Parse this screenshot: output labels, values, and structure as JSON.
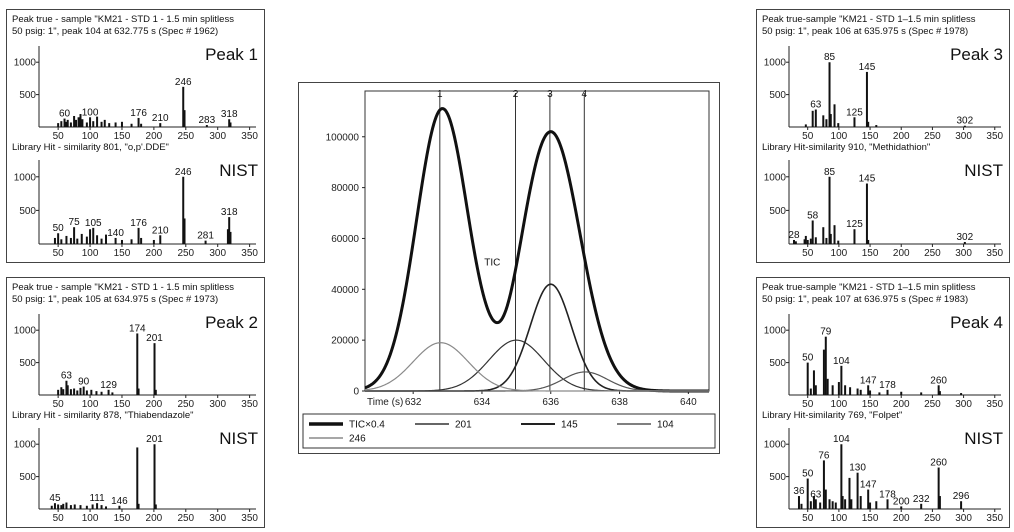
{
  "tic_chart": {
    "type": "line",
    "xlabel": "Time (s)",
    "xlim": [
      630.6,
      640.6
    ],
    "ylim": [
      0,
      118000
    ],
    "x_ticks": [
      632,
      634,
      636,
      638,
      640
    ],
    "y_ticks": [
      0,
      20000,
      40000,
      60000,
      80000,
      100000
    ],
    "peak_markers": [
      {
        "label": "1",
        "x": 632.775
      },
      {
        "label": "2",
        "x": 634.975
      },
      {
        "label": "3",
        "x": 635.975
      },
      {
        "label": "4",
        "x": 636.975
      }
    ],
    "tic_annotation": "TIC",
    "series": [
      {
        "name": "TIC×0.4",
        "peaks": [
          {
            "mu": 632.85,
            "amp": 111000,
            "sigma": 0.75
          },
          {
            "mu": 636.0,
            "amp": 102000,
            "sigma": 0.85
          }
        ],
        "dip": {
          "mu": 634.7,
          "amp": 5000,
          "sigma": 0.35
        }
      },
      {
        "name": "201",
        "peaks": [
          {
            "mu": 635.0,
            "amp": 20000,
            "sigma": 0.8
          }
        ]
      },
      {
        "name": "145",
        "peaks": [
          {
            "mu": 636.0,
            "amp": 42000,
            "sigma": 0.6
          }
        ]
      },
      {
        "name": "104",
        "peaks": [
          {
            "mu": 637.0,
            "amp": 7500,
            "sigma": 0.65
          }
        ]
      },
      {
        "name": "246",
        "peaks": [
          {
            "mu": 632.8,
            "amp": 19000,
            "sigma": 0.8
          }
        ]
      }
    ],
    "series_colors": [
      "#111111",
      "#333333",
      "#222222",
      "#555555",
      "#8a8a8a"
    ]
  },
  "spectra": [
    {
      "id": "peak1",
      "header_line1": "Peak true - sample \"KM21 - STD 1 - 1.5 min splitless",
      "header_line2": "50 psig: 1\", peak 104 at 632.775 s (Spec # 1962)",
      "top_tag": "Peak 1",
      "library_line": "Library Hit - similarity 801, \"o,p'.DDE\"",
      "bottom_tag": "NIST",
      "sample": {
        "type": "bar",
        "ylim": [
          0,
          1250
        ],
        "bars": [
          [
            50,
            60
          ],
          [
            55,
            90
          ],
          [
            60,
            130
          ],
          [
            63,
            80
          ],
          [
            65,
            110
          ],
          [
            70,
            70
          ],
          [
            75,
            170
          ],
          [
            78,
            110
          ],
          [
            82,
            150
          ],
          [
            85,
            200
          ],
          [
            88,
            120
          ],
          [
            95,
            70
          ],
          [
            100,
            150
          ],
          [
            105,
            90
          ],
          [
            111,
            160
          ],
          [
            118,
            80
          ],
          [
            123,
            110
          ],
          [
            130,
            60
          ],
          [
            140,
            70
          ],
          [
            150,
            80
          ],
          [
            165,
            50
          ],
          [
            176,
            140
          ],
          [
            180,
            50
          ],
          [
            210,
            60
          ],
          [
            246,
            620
          ],
          [
            248,
            260
          ],
          [
            283,
            30
          ],
          [
            318,
            120
          ],
          [
            320,
            70
          ]
        ],
        "labels": [
          {
            "text": "60",
            "x": 60,
            "y": 130
          },
          {
            "text": "100",
            "x": 100,
            "y": 150
          },
          {
            "text": "176",
            "x": 176,
            "y": 140
          },
          {
            "text": "210",
            "x": 210,
            "y": 60
          },
          {
            "text": "246",
            "x": 246,
            "y": 620
          },
          {
            "text": "283",
            "x": 283,
            "y": 30
          },
          {
            "text": "318",
            "x": 318,
            "y": 120
          }
        ]
      },
      "library": {
        "type": "bar",
        "ylim": [
          0,
          1250
        ],
        "bars": [
          [
            45,
            90
          ],
          [
            50,
            160
          ],
          [
            55,
            70
          ],
          [
            63,
            120
          ],
          [
            70,
            90
          ],
          [
            75,
            250
          ],
          [
            80,
            80
          ],
          [
            87,
            150
          ],
          [
            95,
            110
          ],
          [
            100,
            220
          ],
          [
            105,
            240
          ],
          [
            111,
            130
          ],
          [
            118,
            80
          ],
          [
            125,
            140
          ],
          [
            140,
            90
          ],
          [
            150,
            60
          ],
          [
            165,
            70
          ],
          [
            176,
            240
          ],
          [
            180,
            90
          ],
          [
            200,
            60
          ],
          [
            210,
            130
          ],
          [
            246,
            1000
          ],
          [
            248,
            380
          ],
          [
            281,
            50
          ],
          [
            316,
            220
          ],
          [
            318,
            400
          ],
          [
            320,
            180
          ]
        ],
        "labels": [
          {
            "text": "50",
            "x": 50,
            "y": 160
          },
          {
            "text": "75",
            "x": 75,
            "y": 250
          },
          {
            "text": "105",
            "x": 105,
            "y": 240
          },
          {
            "text": "140",
            "x": 140,
            "y": 90
          },
          {
            "text": "176",
            "x": 176,
            "y": 240
          },
          {
            "text": "210",
            "x": 210,
            "y": 130
          },
          {
            "text": "246",
            "x": 246,
            "y": 1000
          },
          {
            "text": "281",
            "x": 281,
            "y": 50
          },
          {
            "text": "318",
            "x": 318,
            "y": 400
          }
        ]
      }
    },
    {
      "id": "peak2",
      "header_line1": "Peak true - sample \"KM21 - STD 1 - 1.5 min splitless",
      "header_line2": "50 psig: 1\", peak 105 at 634.975 s (Spec # 1973)",
      "top_tag": "Peak 2",
      "library_line": "Library Hit - similarity 878, \"Thiabendazole\"",
      "bottom_tag": "NIST",
      "sample": {
        "type": "bar",
        "ylim": [
          0,
          1250
        ],
        "bars": [
          [
            50,
            80
          ],
          [
            55,
            120
          ],
          [
            58,
            90
          ],
          [
            63,
            220
          ],
          [
            65,
            150
          ],
          [
            70,
            90
          ],
          [
            75,
            100
          ],
          [
            80,
            70
          ],
          [
            85,
            110
          ],
          [
            90,
            130
          ],
          [
            95,
            70
          ],
          [
            102,
            80
          ],
          [
            110,
            60
          ],
          [
            118,
            50
          ],
          [
            129,
            80
          ],
          [
            135,
            40
          ],
          [
            174,
            950
          ],
          [
            176,
            100
          ],
          [
            201,
            800
          ],
          [
            203,
            80
          ]
        ],
        "labels": [
          {
            "text": "63",
            "x": 63,
            "y": 220
          },
          {
            "text": "90",
            "x": 90,
            "y": 130
          },
          {
            "text": "129",
            "x": 129,
            "y": 80
          },
          {
            "text": "174",
            "x": 174,
            "y": 950
          },
          {
            "text": "201",
            "x": 201,
            "y": 800
          }
        ]
      },
      "library": {
        "type": "bar",
        "ylim": [
          0,
          1250
        ],
        "bars": [
          [
            40,
            50
          ],
          [
            45,
            90
          ],
          [
            50,
            70
          ],
          [
            55,
            60
          ],
          [
            58,
            80
          ],
          [
            63,
            100
          ],
          [
            70,
            60
          ],
          [
            76,
            70
          ],
          [
            85,
            60
          ],
          [
            95,
            50
          ],
          [
            104,
            70
          ],
          [
            111,
            90
          ],
          [
            118,
            60
          ],
          [
            125,
            40
          ],
          [
            146,
            50
          ],
          [
            174,
            950
          ],
          [
            176,
            80
          ],
          [
            201,
            1000
          ],
          [
            203,
            70
          ]
        ],
        "labels": [
          {
            "text": "45",
            "x": 45,
            "y": 90
          },
          {
            "text": "111",
            "x": 111,
            "y": 90
          },
          {
            "text": "146",
            "x": 146,
            "y": 50
          },
          {
            "text": "201",
            "x": 201,
            "y": 1000
          }
        ]
      }
    },
    {
      "id": "peak3",
      "header_line1": "Peak true-sample \"KM21 - STD 1–1.5 min splitless",
      "header_line2": "50 psig: 1\", peak 106 at 635.975 s (Spec # 1978)",
      "top_tag": "Peak 3",
      "library_line": "Library Hit-similarity 910, \"Methidathion\"",
      "bottom_tag": "NIST",
      "sample": {
        "type": "bar",
        "ylim": [
          0,
          1250
        ],
        "bars": [
          [
            47,
            40
          ],
          [
            58,
            250
          ],
          [
            63,
            270
          ],
          [
            75,
            180
          ],
          [
            80,
            120
          ],
          [
            85,
            1000
          ],
          [
            87,
            200
          ],
          [
            93,
            350
          ],
          [
            99,
            60
          ],
          [
            125,
            150
          ],
          [
            145,
            850
          ],
          [
            147,
            80
          ],
          [
            160,
            30
          ],
          [
            302,
            20
          ]
        ],
        "labels": [
          {
            "text": "63",
            "x": 63,
            "y": 270
          },
          {
            "text": "85",
            "x": 85,
            "y": 1000
          },
          {
            "text": "145",
            "x": 145,
            "y": 850
          },
          {
            "text": "125",
            "x": 125,
            "y": 150
          },
          {
            "text": "302",
            "x": 302,
            "y": 20
          }
        ]
      },
      "library": {
        "type": "bar",
        "ylim": [
          0,
          1250
        ],
        "bars": [
          [
            28,
            60
          ],
          [
            31,
            40
          ],
          [
            45,
            70
          ],
          [
            47,
            120
          ],
          [
            50,
            60
          ],
          [
            55,
            80
          ],
          [
            58,
            350
          ],
          [
            63,
            100
          ],
          [
            75,
            250
          ],
          [
            80,
            90
          ],
          [
            85,
            1000
          ],
          [
            87,
            150
          ],
          [
            93,
            280
          ],
          [
            99,
            50
          ],
          [
            125,
            220
          ],
          [
            145,
            900
          ],
          [
            147,
            60
          ],
          [
            302,
            30
          ]
        ],
        "labels": [
          {
            "text": "28",
            "x": 28,
            "y": 60
          },
          {
            "text": "58",
            "x": 58,
            "y": 350
          },
          {
            "text": "85",
            "x": 85,
            "y": 1000
          },
          {
            "text": "145",
            "x": 145,
            "y": 900
          },
          {
            "text": "125",
            "x": 125,
            "y": 220
          },
          {
            "text": "302",
            "x": 302,
            "y": 30
          }
        ]
      }
    },
    {
      "id": "peak4",
      "header_line1": "Peak true-sample \"KM21 - STD 1–1.5 min splitless",
      "header_line2": "50 psig: 1\", peak 107 at 636.975 s (Spec # 1983)",
      "top_tag": "Peak 4",
      "library_line": "Library Hit-similarity 769, \"Folpet\"",
      "bottom_tag": "NIST",
      "sample": {
        "type": "bar",
        "ylim": [
          0,
          1250
        ],
        "bars": [
          [
            50,
            500
          ],
          [
            55,
            100
          ],
          [
            60,
            380
          ],
          [
            63,
            150
          ],
          [
            76,
            700
          ],
          [
            79,
            900
          ],
          [
            82,
            250
          ],
          [
            90,
            150
          ],
          [
            100,
            200
          ],
          [
            104,
            450
          ],
          [
            110,
            150
          ],
          [
            118,
            120
          ],
          [
            130,
            100
          ],
          [
            135,
            80
          ],
          [
            147,
            150
          ],
          [
            150,
            70
          ],
          [
            165,
            40
          ],
          [
            178,
            80
          ],
          [
            200,
            50
          ],
          [
            232,
            40
          ],
          [
            260,
            150
          ],
          [
            262,
            60
          ],
          [
            296,
            30
          ]
        ],
        "labels": [
          {
            "text": "50",
            "x": 50,
            "y": 500
          },
          {
            "text": "79",
            "x": 79,
            "y": 900
          },
          {
            "text": "104",
            "x": 104,
            "y": 450
          },
          {
            "text": "147",
            "x": 147,
            "y": 150
          },
          {
            "text": "178",
            "x": 178,
            "y": 80
          },
          {
            "text": "260",
            "x": 260,
            "y": 150
          }
        ]
      },
      "library": {
        "type": "bar",
        "ylim": [
          0,
          1250
        ],
        "bars": [
          [
            36,
            200
          ],
          [
            40,
            80
          ],
          [
            50,
            470
          ],
          [
            55,
            120
          ],
          [
            60,
            200
          ],
          [
            63,
            150
          ],
          [
            70,
            100
          ],
          [
            76,
            750
          ],
          [
            79,
            300
          ],
          [
            85,
            150
          ],
          [
            90,
            120
          ],
          [
            95,
            100
          ],
          [
            104,
            1000
          ],
          [
            106,
            200
          ],
          [
            110,
            150
          ],
          [
            117,
            480
          ],
          [
            120,
            150
          ],
          [
            130,
            560
          ],
          [
            135,
            200
          ],
          [
            147,
            300
          ],
          [
            150,
            100
          ],
          [
            160,
            120
          ],
          [
            178,
            150
          ],
          [
            200,
            40
          ],
          [
            232,
            80
          ],
          [
            260,
            640
          ],
          [
            262,
            200
          ],
          [
            296,
            120
          ]
        ],
        "labels": [
          {
            "text": "36",
            "x": 36,
            "y": 200
          },
          {
            "text": "50",
            "x": 50,
            "y": 470
          },
          {
            "text": "76",
            "x": 76,
            "y": 750
          },
          {
            "text": "63",
            "x": 63,
            "y": 150
          },
          {
            "text": "104",
            "x": 104,
            "y": 1000
          },
          {
            "text": "130",
            "x": 130,
            "y": 560
          },
          {
            "text": "147",
            "x": 147,
            "y": 300
          },
          {
            "text": "178",
            "x": 178,
            "y": 150
          },
          {
            "text": "200",
            "x": 200,
            "y": 40
          },
          {
            "text": "232",
            "x": 232,
            "y": 80
          },
          {
            "text": "260",
            "x": 260,
            "y": 640
          },
          {
            "text": "296",
            "x": 296,
            "y": 120
          }
        ]
      }
    }
  ],
  "spectrum_axis": {
    "x_ticks": [
      50,
      100,
      150,
      200,
      250,
      300,
      350
    ],
    "y_ticks": [
      500,
      1000
    ],
    "xlim": [
      20,
      360
    ]
  }
}
